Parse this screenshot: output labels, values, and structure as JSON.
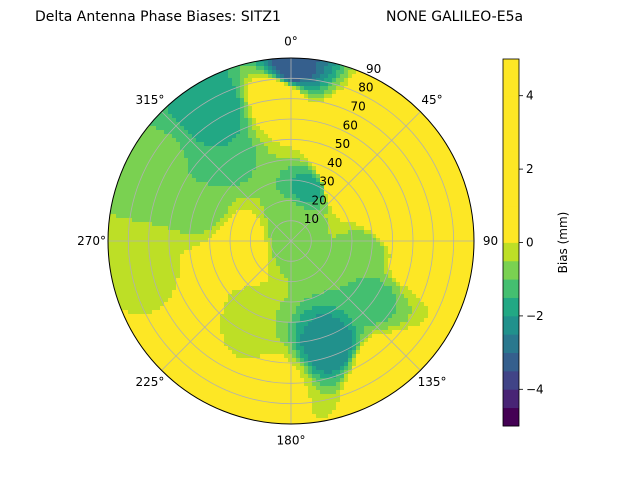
{
  "title_left": "Delta Antenna Phase Biases: SITZ1",
  "title_right": "NONE GALILEO-E5a",
  "chart_data": {
    "type": "heatmap",
    "projection": "polar",
    "title": "Delta Antenna Phase Biases: SITZ1",
    "subtitle": "NONE GALILEO-E5a",
    "azimuth_labels": [
      {
        "deg": 0,
        "text": "0°"
      },
      {
        "deg": 45,
        "text": "45°"
      },
      {
        "deg": 90,
        "text": "90"
      },
      {
        "deg": 135,
        "text": "135°"
      },
      {
        "deg": 180,
        "text": "180°"
      },
      {
        "deg": 225,
        "text": "225°"
      },
      {
        "deg": 270,
        "text": "270°"
      },
      {
        "deg": 315,
        "text": "315°"
      }
    ],
    "radial_ticks": [
      10,
      20,
      30,
      40,
      50,
      60,
      70,
      80,
      90
    ],
    "radial_range": [
      0,
      90
    ],
    "radial_label_direction_deg": 22.5,
    "grid": true,
    "colorbar": {
      "label": "Bias (mm)",
      "ticks": [
        -4,
        -2,
        0,
        2,
        4
      ],
      "range": [
        -5,
        5
      ],
      "levels": [
        -5,
        -4.5,
        -4,
        -3.5,
        -3,
        -2.5,
        -2,
        -1.5,
        -1,
        -0.5,
        0,
        0.5,
        1,
        1.5,
        2,
        2.5,
        3,
        3.5,
        4,
        4.5,
        5
      ],
      "colors": [
        "#440154",
        "#482475",
        "#414487",
        "#355f8d",
        "#2a788e",
        "#21918c",
        "#22a884",
        "#44bf70",
        "#7ad151",
        "#bddf26",
        "#fde725"
      ],
      "band_colors_used": [
        "#3b528b",
        "#2c728e",
        "#21918c",
        "#28ae80",
        "#5ec962",
        "#addc30",
        "#d8e219"
      ]
    },
    "features": [
      {
        "az": 0,
        "r": 85,
        "value": -3.5
      },
      {
        "az": 355,
        "r": 72,
        "value": 1.5
      },
      {
        "az": 330,
        "r": 75,
        "value": -2
      },
      {
        "az": 318,
        "r": 55,
        "value": -1.5
      },
      {
        "az": 290,
        "r": 45,
        "value": -0.7
      },
      {
        "az": 300,
        "r": 72,
        "value": -0.8
      },
      {
        "az": 250,
        "r": 70,
        "value": -0.5
      },
      {
        "az": 265,
        "r": 25,
        "value": 1.2
      },
      {
        "az": 236,
        "r": 62,
        "value": 2.2
      },
      {
        "az": 225,
        "r": 80,
        "value": 1.8
      },
      {
        "az": 210,
        "r": 45,
        "value": -0.5
      },
      {
        "az": 185,
        "r": 70,
        "value": 0.3
      },
      {
        "az": 160,
        "r": 55,
        "value": -2.5
      },
      {
        "az": 145,
        "r": 78,
        "value": 2.0
      },
      {
        "az": 125,
        "r": 50,
        "value": -1.2
      },
      {
        "az": 100,
        "r": 60,
        "value": 0.4
      },
      {
        "az": 95,
        "r": 38,
        "value": -1.0
      },
      {
        "az": 80,
        "r": 48,
        "value": 1.8
      },
      {
        "az": 30,
        "r": 55,
        "value": 2.0
      },
      {
        "az": 35,
        "r": 38,
        "value": 2.3
      },
      {
        "az": 20,
        "r": 28,
        "value": -1.8
      },
      {
        "az": 60,
        "r": 88,
        "value": 5.0
      },
      {
        "az": 75,
        "r": 88,
        "value": 4.0
      },
      {
        "az": 45,
        "r": 88,
        "value": 2.5
      },
      {
        "az": 0,
        "r": 0,
        "value": -0.8
      },
      {
        "az": 0,
        "r": 10,
        "value": -0.7
      }
    ]
  }
}
